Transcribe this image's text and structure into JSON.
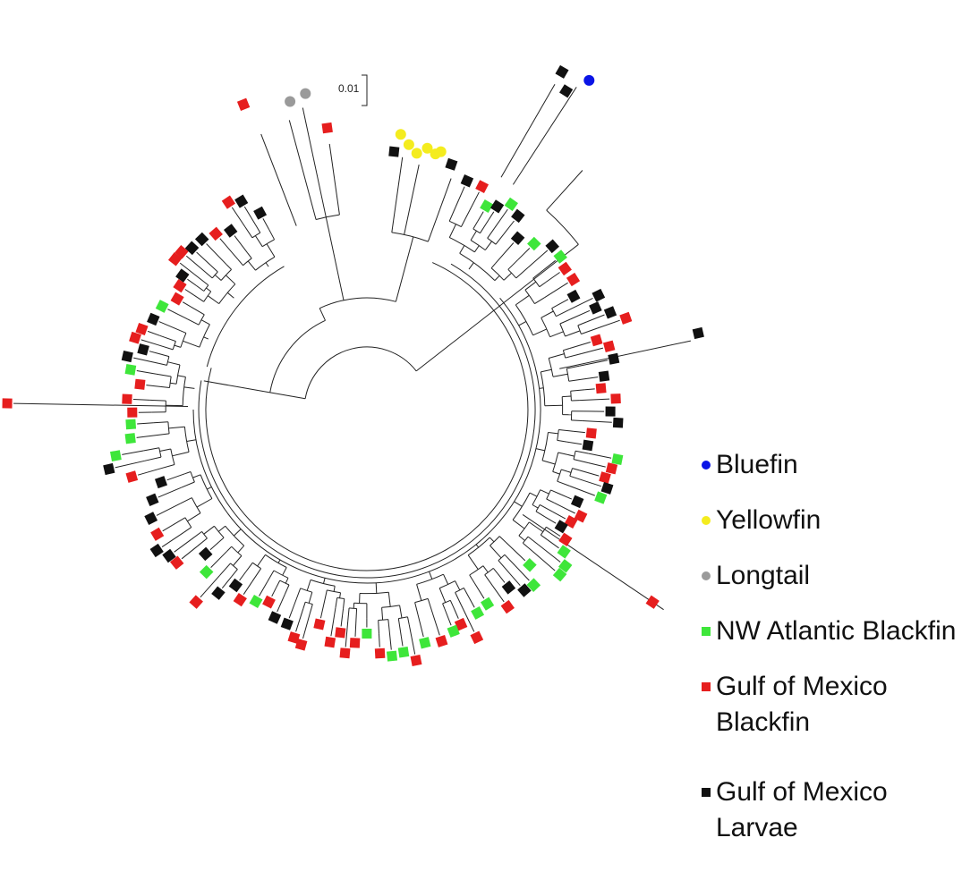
{
  "scale_bar": {
    "label": "0.01"
  },
  "legend": [
    {
      "label": "Bluefin",
      "marker": "circle",
      "color": "#0a14e6"
    },
    {
      "label": "Yellowfin",
      "marker": "circle",
      "color": "#f4ec1e"
    },
    {
      "label": "Longtail",
      "marker": "circle",
      "color": "#9a9a9a"
    },
    {
      "label": "NW Atlantic Blackfin",
      "marker": "square",
      "color": "#3ee63a"
    },
    {
      "label": "Gulf of Mexico\nBlackfin",
      "marker": "square",
      "color": "#e61e1e"
    },
    {
      "label": "Gulf of Mexico\nLarvae",
      "marker": "square",
      "color": "#111111"
    }
  ],
  "groups": {
    "bluefin": "#0a14e6",
    "yellowfin": "#f4ec1e",
    "longtail": "#9a9a9a",
    "nw_atlantic_blackfin": "#3ee63a",
    "gom_blackfin": "#e61e1e",
    "gom_larvae": "#111111"
  }
}
